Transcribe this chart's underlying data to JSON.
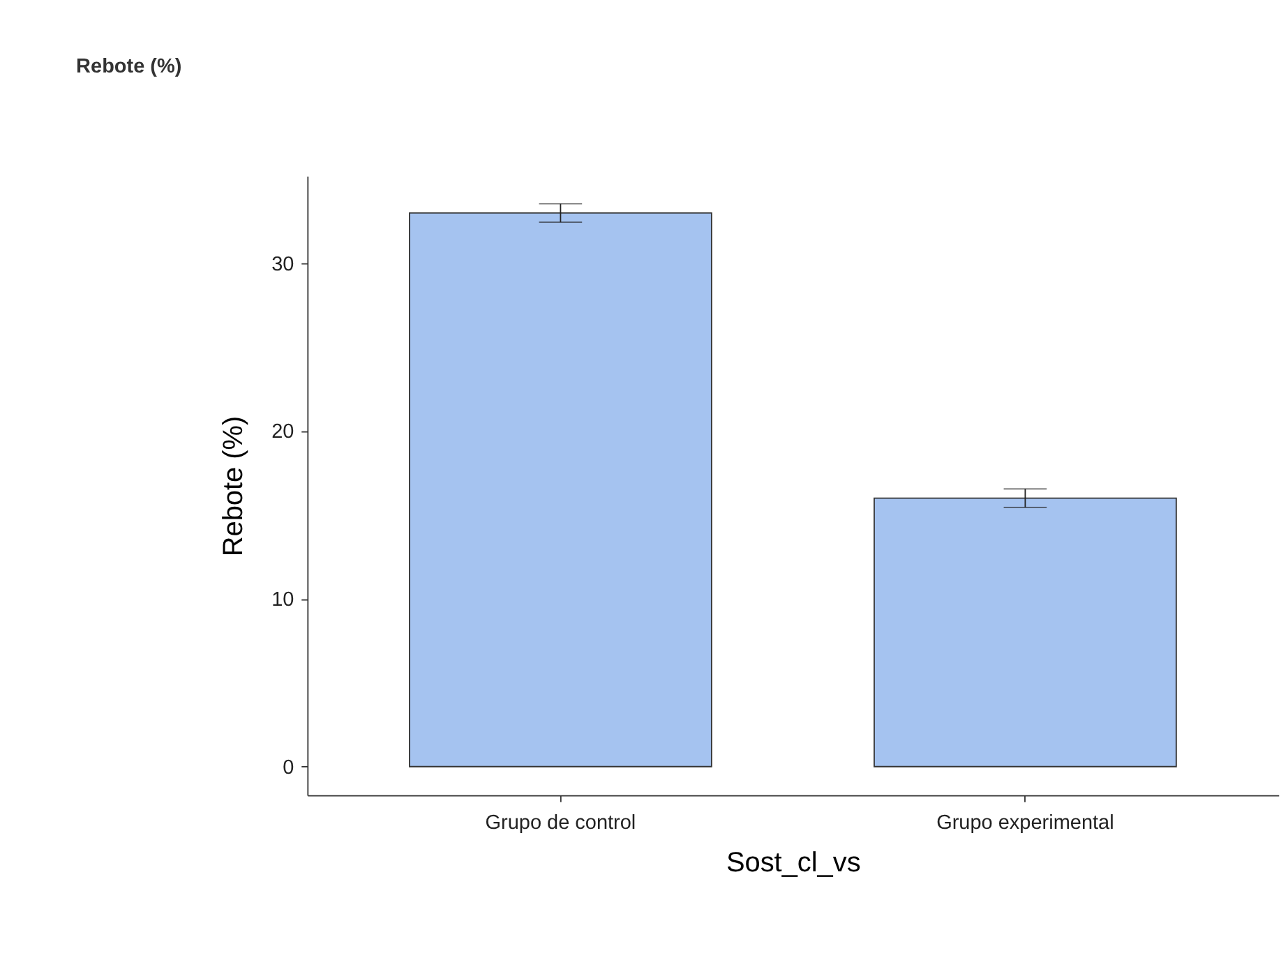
{
  "chart_data": {
    "type": "bar",
    "title": "Rebote (%)",
    "xlabel": "Sost_cl_vs",
    "ylabel": "Rebote (%)",
    "categories": [
      "Grupo de control",
      "Grupo experimental"
    ],
    "series": [
      {
        "color": "#a5c3f0",
        "values": [
          33.0,
          16.0
        ],
        "errors": [
          0.55,
          0.55
        ]
      }
    ],
    "ylim": [
      -1.7,
      35.2
    ],
    "yticks": [
      0,
      10,
      20,
      30
    ],
    "grid": false
  }
}
